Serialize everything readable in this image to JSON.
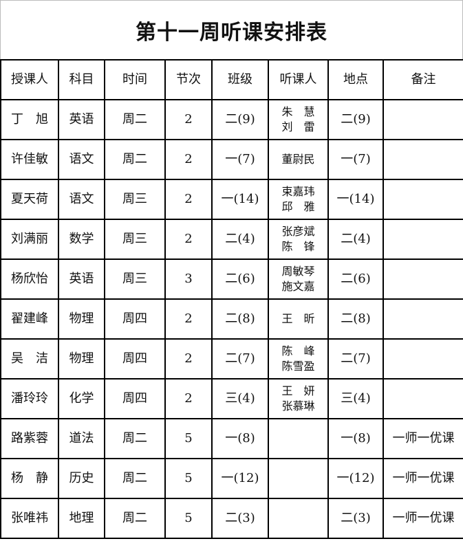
{
  "title": "第十一周听课安排表",
  "headers": [
    "授课人",
    "科目",
    "时间",
    "节次",
    "班级",
    "听课人",
    "地点",
    "备注"
  ],
  "rows": [
    {
      "teacher": "丁　旭",
      "subject": "英语",
      "time": "周二",
      "period": "2",
      "class": "二(9)",
      "listeners": [
        "朱　慧",
        "刘　雷"
      ],
      "place": "二(9)",
      "note": ""
    },
    {
      "teacher": "许佳敏",
      "subject": "语文",
      "time": "周二",
      "period": "2",
      "class": "一(7)",
      "listeners": [
        "董尉民"
      ],
      "place": "一(7)",
      "note": ""
    },
    {
      "teacher": "夏天荷",
      "subject": "语文",
      "time": "周三",
      "period": "2",
      "class": "一(14)",
      "listeners": [
        "束嘉玮",
        "邱　雅"
      ],
      "place": "一(14)",
      "note": ""
    },
    {
      "teacher": "刘满丽",
      "subject": "数学",
      "time": "周三",
      "period": "2",
      "class": "二(4)",
      "listeners": [
        "张彦斌",
        "陈　锋"
      ],
      "place": "二(4)",
      "note": ""
    },
    {
      "teacher": "杨欣怡",
      "subject": "英语",
      "time": "周三",
      "period": "3",
      "class": "二(6)",
      "listeners": [
        "周敏琴",
        "施文嘉"
      ],
      "place": "二(6)",
      "note": ""
    },
    {
      "teacher": "翟建峰",
      "subject": "物理",
      "time": "周四",
      "period": "2",
      "class": "二(8)",
      "listeners": [
        "王　昕"
      ],
      "place": "二(8)",
      "note": ""
    },
    {
      "teacher": "吴　洁",
      "subject": "物理",
      "time": "周四",
      "period": "2",
      "class": "二(7)",
      "listeners": [
        "陈　峰",
        "陈雪盈"
      ],
      "place": "二(7)",
      "note": ""
    },
    {
      "teacher": "潘玲玲",
      "subject": "化学",
      "time": "周四",
      "period": "2",
      "class": "三(4)",
      "listeners": [
        "王　妍",
        "张慕琳"
      ],
      "place": "三(4)",
      "note": ""
    },
    {
      "teacher": "路紫蓉",
      "subject": "道法",
      "time": "周二",
      "period": "5",
      "class": "一(8)",
      "listeners": [],
      "place": "一(8)",
      "note": "一师一优课"
    },
    {
      "teacher": "杨　静",
      "subject": "历史",
      "time": "周二",
      "period": "5",
      "class": "一(12)",
      "listeners": [],
      "place": "一(12)",
      "note": "一师一优课"
    },
    {
      "teacher": "张唯祎",
      "subject": "地理",
      "time": "周二",
      "period": "5",
      "class": "二(3)",
      "listeners": [],
      "place": "二(3)",
      "note": "一师一优课"
    }
  ]
}
